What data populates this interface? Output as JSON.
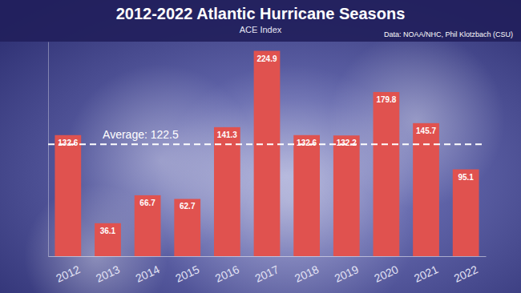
{
  "chart_data": {
    "type": "bar",
    "title": "2012-2022 Atlantic Hurricane Seasons",
    "subtitle": "ACE Index",
    "source": "Data: NOAA/NHC, Phil Klotzbach (CSU)",
    "categories": [
      "2012",
      "2013",
      "2014",
      "2015",
      "2016",
      "2017",
      "2018",
      "2019",
      "2020",
      "2021",
      "2022"
    ],
    "values": [
      132.6,
      36.1,
      66.7,
      62.7,
      141.3,
      224.9,
      132.6,
      132.2,
      179.8,
      145.7,
      95.1
    ],
    "color": "#e0524f",
    "ylim": [
      0,
      235
    ],
    "tick_labels": "x",
    "grid": false,
    "data_labels": true,
    "annotations": [
      {
        "y": 122.5,
        "text": "Average: 122.5",
        "line_style": "dashed"
      }
    ]
  }
}
